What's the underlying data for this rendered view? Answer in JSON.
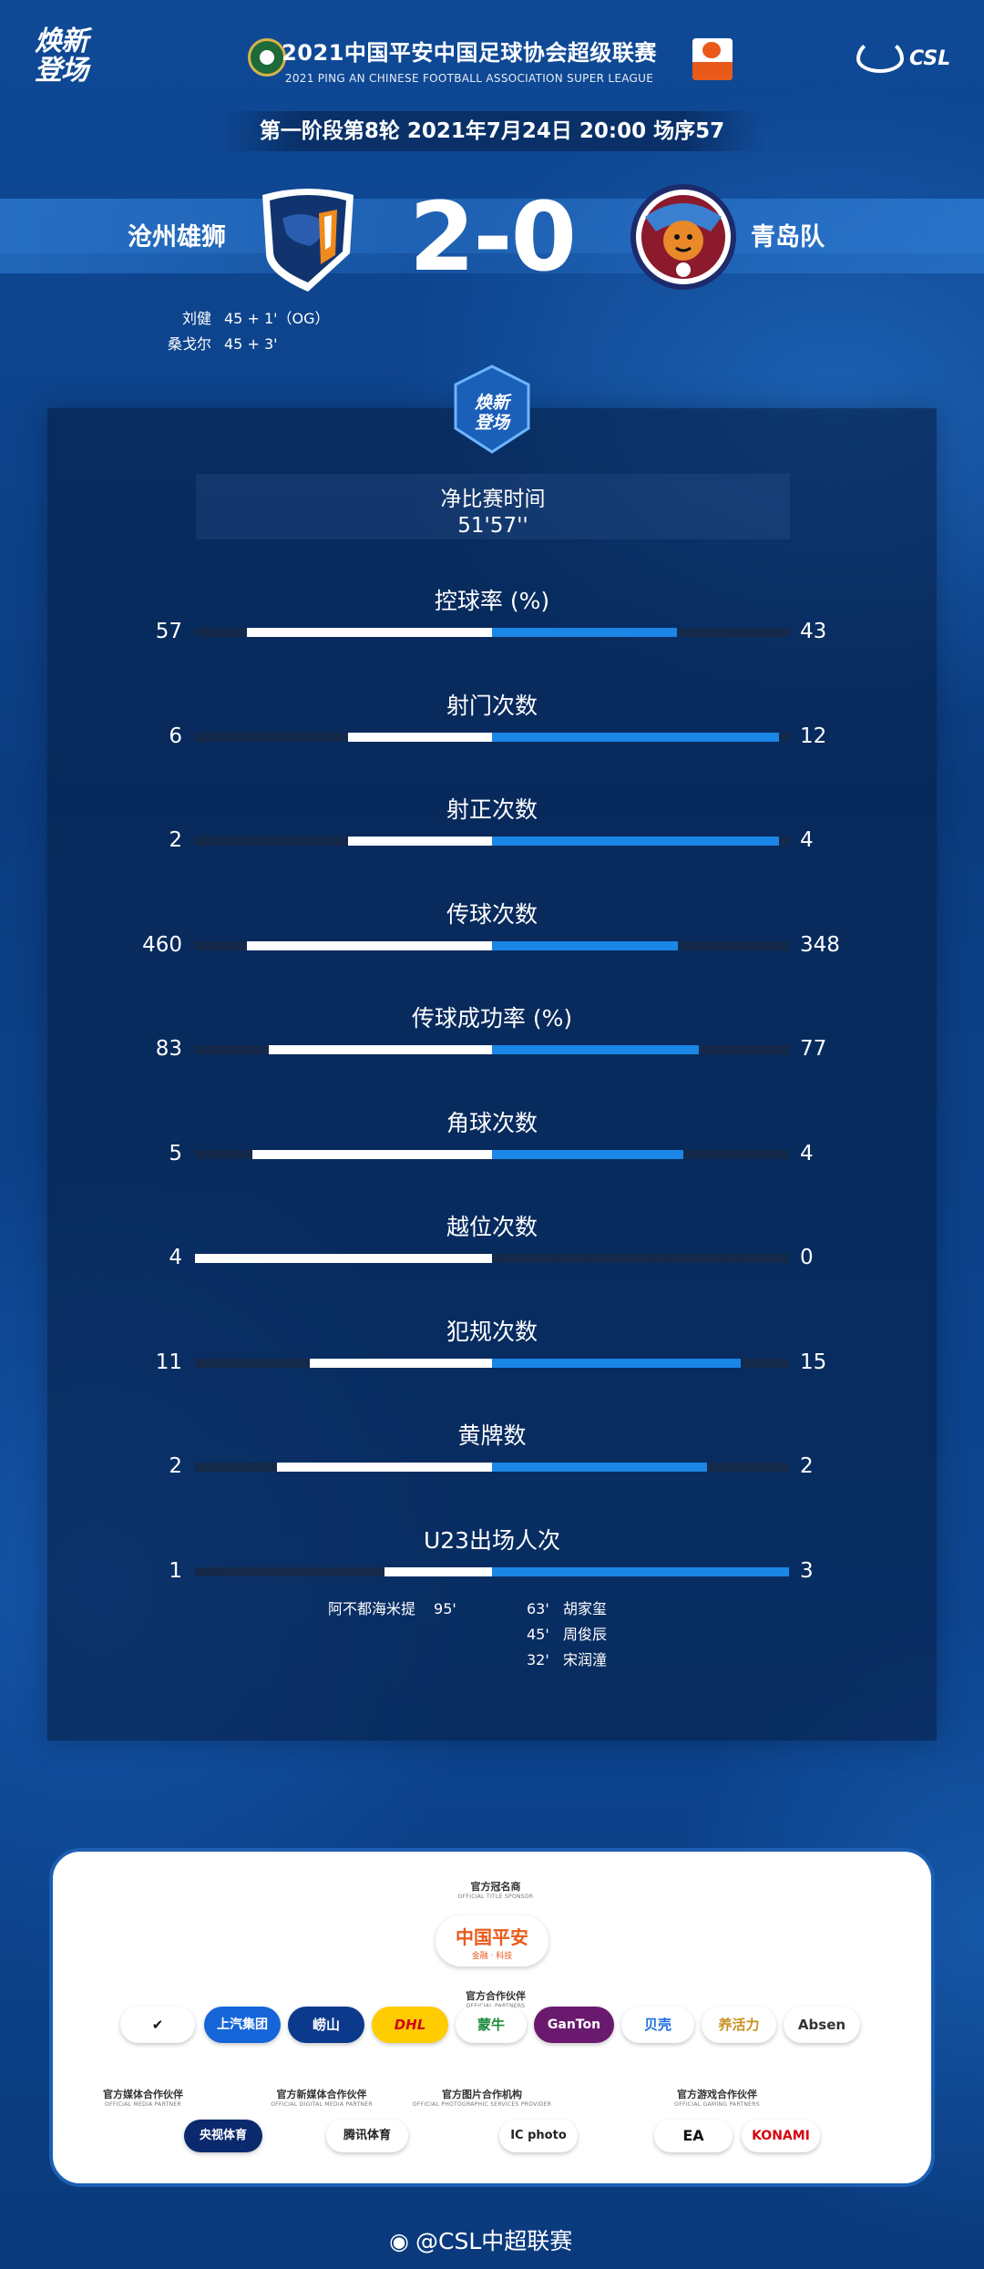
{
  "header": {
    "brand_line1": "焕新",
    "brand_line2": "登场",
    "league_cn": "2021中国平安中国足球协会超级联赛",
    "league_en": "2021 PING AN CHINESE FOOTBALL ASSOCIATION SUPER LEAGUE",
    "csl_text": "CSL",
    "round_info": "第一阶段第8轮  2021年7月24日 20:00 场序57"
  },
  "match": {
    "home_team": "沧州雄狮",
    "away_team": "青岛队",
    "score": "2-0",
    "scorers": [
      {
        "player": "刘健",
        "minute": "45 + 1'（OG）"
      },
      {
        "player": "桑戈尔",
        "minute": "45 + 3'"
      }
    ]
  },
  "panel": {
    "badge_line1": "焕新",
    "badge_line2": "登场",
    "net_time_label": "净比赛时间",
    "net_time_value": "51'57''"
  },
  "stats": [
    {
      "label": "控球率 (%)",
      "home": "57",
      "away": "43",
      "home_val": 57,
      "away_val": 43
    },
    {
      "label": "射门次数",
      "home": "6",
      "away": "12",
      "home_val": 6,
      "away_val": 12
    },
    {
      "label": "射正次数",
      "home": "2",
      "away": "4",
      "home_val": 2,
      "away_val": 4
    },
    {
      "label": "传球次数",
      "home": "460",
      "away": "348",
      "home_val": 460,
      "away_val": 348
    },
    {
      "label": "传球成功率 (%)",
      "home": "83",
      "away": "77",
      "home_val": 83,
      "away_val": 77
    },
    {
      "label": "角球次数",
      "home": "5",
      "away": "4",
      "home_val": 5,
      "away_val": 4
    },
    {
      "label": "越位次数",
      "home": "4",
      "away": "0",
      "home_val": 4,
      "away_val": 0
    },
    {
      "label": "犯规次数",
      "home": "11",
      "away": "15",
      "home_val": 11,
      "away_val": 15
    },
    {
      "label": "黄牌数",
      "home": "2",
      "away": "2",
      "home_val": 2,
      "away_val": 2
    },
    {
      "label": "U23出场人次",
      "home": "1",
      "away": "3",
      "home_val": 1,
      "away_val": 3
    }
  ],
  "u23": {
    "home": [
      {
        "player": "阿不都海米提",
        "minute": "95'"
      }
    ],
    "away": [
      {
        "minute": "63'",
        "player": "胡家玺"
      },
      {
        "minute": "45'",
        "player": "周俊辰"
      },
      {
        "minute": "32'",
        "player": "宋润潼"
      }
    ]
  },
  "sponsors": {
    "title_header": "官方冠名商",
    "title_header_en": "OFFICIAL TITLE SPONSOR",
    "title_sponsor": "中国平安",
    "title_sponsor_sub": "金融 · 科技",
    "partners_header": "官方合作伙伴",
    "partners_header_en": "OFFICIAL PARTNERS",
    "partners": [
      "✔",
      "上汽集团",
      "崂山",
      "DHL",
      "蒙牛",
      "GanTon",
      "贝壳",
      "养活力",
      "Absen"
    ],
    "media_header": "官方媒体合作伙伴",
    "media_header_en": "OFFICIAL MEDIA PARTNER",
    "newmedia_header": "官方新媒体合作伙伴",
    "newmedia_header_en": "OFFICIAL DIGITAL MEDIA PARTNER",
    "photo_header": "官方图片合作机构",
    "photo_header_en": "OFFICIAL PHOTOGRAPHIC SERVICES PROVIDER",
    "game_header": "官方游戏合作伙伴",
    "game_header_en": "OFFICIAL GAMING PARTNERS",
    "media": "央视体育",
    "newmedia": "腾讯体育",
    "photo": "IC photo",
    "game1": "EA",
    "game2": "KONAMI"
  },
  "footer": {
    "handle": "@CSL中超联赛"
  },
  "colors": {
    "home_bar": "#ffffff",
    "away_bar": "#1a86e6",
    "track": "#15294a",
    "accent_orange": "#e95a1a"
  }
}
